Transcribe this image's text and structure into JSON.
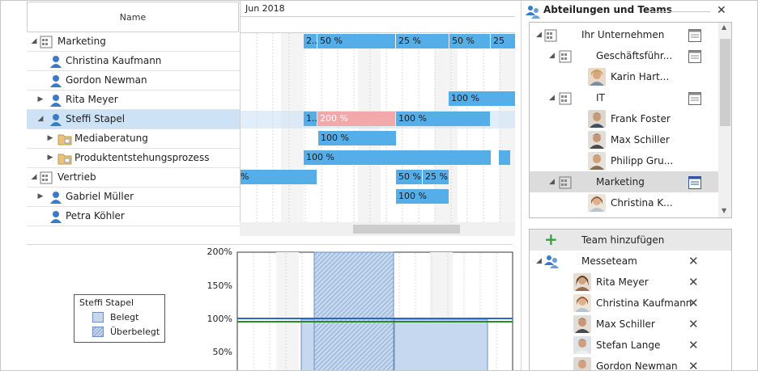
{
  "tree": {
    "name_header": "Name",
    "rows": [
      {
        "label": "Marketing",
        "expand": "◢",
        "type": "org"
      },
      {
        "label": "Christina Kaufmann",
        "expand": "",
        "type": "person"
      },
      {
        "label": "Gordon Newman",
        "expand": "",
        "type": "person"
      },
      {
        "label": "Rita Meyer",
        "expand": "▶",
        "type": "person"
      },
      {
        "label": "Steffi Stapel",
        "expand": "◢",
        "type": "person"
      },
      {
        "label": "Mediaberatung",
        "expand": "▶",
        "type": "folder"
      },
      {
        "label": "Produktentstehungsprozess",
        "expand": "▶",
        "type": "folder"
      },
      {
        "label": "Vertrieb",
        "expand": "◢",
        "type": "org"
      },
      {
        "label": "Gabriel Müller",
        "expand": "▶",
        "type": "person"
      },
      {
        "label": "Petra Köhler",
        "expand": "",
        "type": "person"
      }
    ]
  },
  "gantt": {
    "month": "Jun 2018",
    "labels": [
      "2...",
      "50 %",
      "25 %",
      "50 %",
      "25",
      "1...",
      "200 %",
      "100 %",
      "100 %",
      "100 %",
      "%",
      "50 %",
      "25 %",
      "100 %",
      "100 %"
    ]
  },
  "chart_data": {
    "type": "bar",
    "ytick_labels": [
      "200%",
      "150%",
      "100%",
      "50%"
    ],
    "legend_title": "Steffi Stapel",
    "legend_items": [
      "Belegt",
      "Überbelegt"
    ]
  },
  "departments": {
    "title": "Abteilungen und Teams",
    "close": "✕",
    "rows": [
      {
        "label": "Ihr Unternehmen"
      },
      {
        "label": "Geschäftsführ..."
      },
      {
        "label": "Karin Hart..."
      },
      {
        "label": "IT"
      },
      {
        "label": "Frank Foster"
      },
      {
        "label": "Max Schiller"
      },
      {
        "label": "Philipp Gru..."
      },
      {
        "label": "Marketing"
      },
      {
        "label": "Christina K..."
      }
    ]
  },
  "teams": {
    "add_label": "Team hinzufügen",
    "team_name": "Messeteam",
    "members": [
      "Rita Meyer",
      "Christina Kaufmann",
      "Max Schiller",
      "Stefan Lange",
      "Gordon Newman"
    ],
    "remove": "✕"
  },
  "colors": {
    "bar": "#56aee8",
    "over": "#f2a9a9",
    "selected": "#cde3f5"
  }
}
